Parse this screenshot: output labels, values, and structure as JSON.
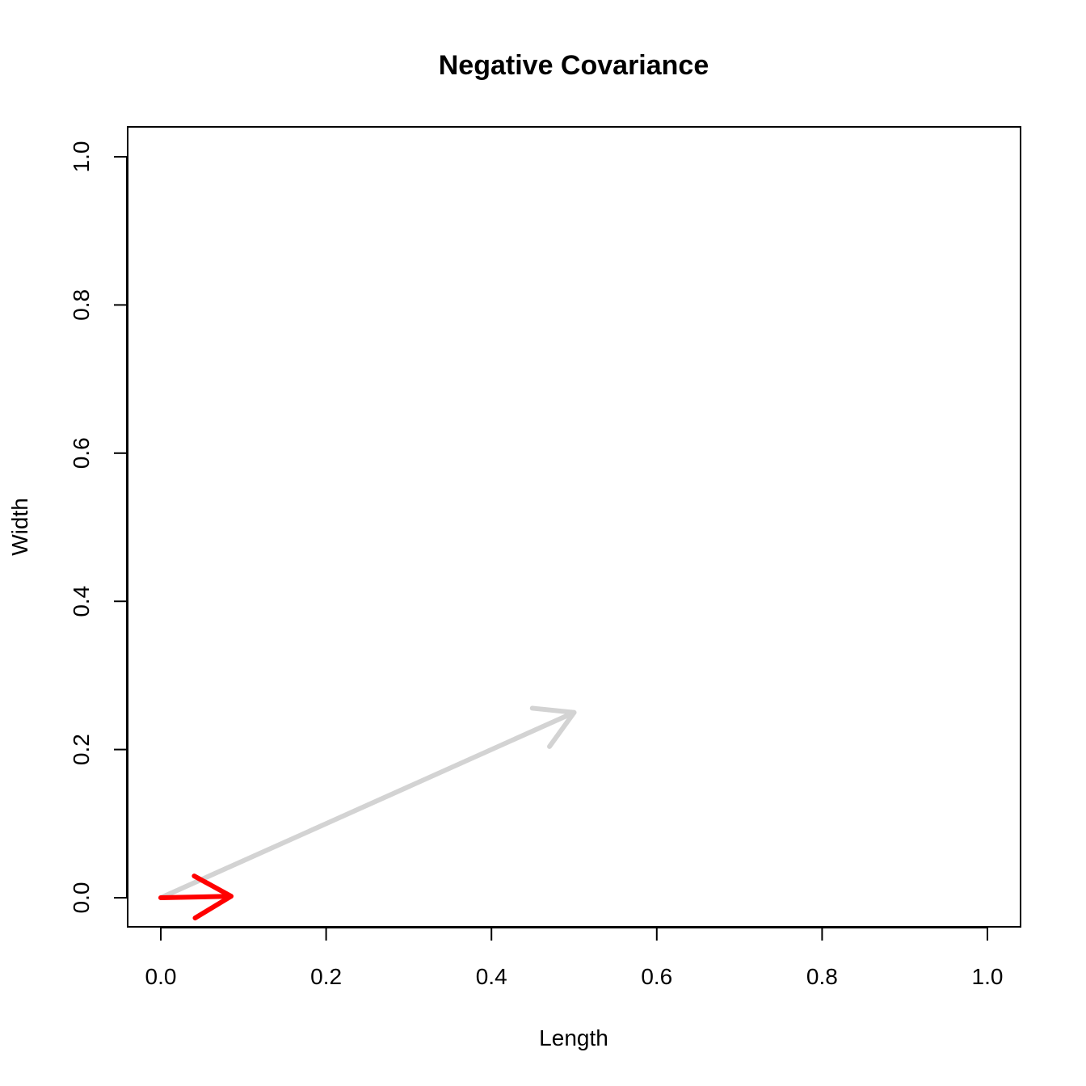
{
  "chart_data": {
    "type": "vector",
    "title": "Negative Covariance",
    "xlabel": "Length",
    "ylabel": "Width",
    "xlim": [
      0,
      1
    ],
    "ylim": [
      0,
      1
    ],
    "x_ticks": [
      0.0,
      0.2,
      0.4,
      0.6,
      0.8,
      1.0
    ],
    "x_tick_labels": [
      "0.0",
      "0.2",
      "0.4",
      "0.6",
      "0.8",
      "1.0"
    ],
    "y_ticks": [
      0.0,
      0.2,
      0.4,
      0.6,
      0.8,
      1.0
    ],
    "y_tick_labels": [
      "0.0",
      "0.2",
      "0.4",
      "0.6",
      "0.8",
      "1.0"
    ],
    "grid": false,
    "vectors": [
      {
        "x0": 0,
        "y0": 0,
        "x1": 0.5,
        "y1": 0.25,
        "color": "#d3d3d3"
      },
      {
        "x0": 0,
        "y0": 0,
        "x1": 0.085,
        "y1": 0.002,
        "color": "#ff0000"
      }
    ]
  }
}
